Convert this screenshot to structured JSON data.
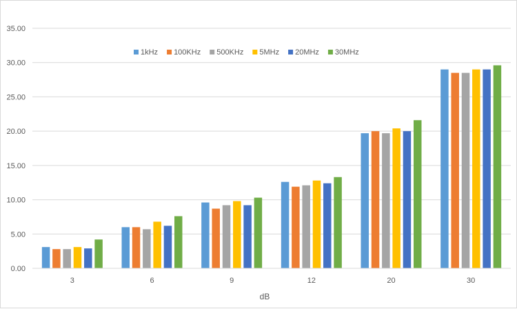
{
  "chart_data": {
    "type": "bar",
    "categories": [
      "3",
      "6",
      "9",
      "12",
      "20",
      "30"
    ],
    "series": [
      {
        "name": "1kHz",
        "color": "#5b9bd5",
        "values": [
          3.1,
          6.0,
          9.6,
          12.6,
          19.7,
          29.0
        ]
      },
      {
        "name": "100KHz",
        "color": "#ed7d31",
        "values": [
          2.8,
          6.0,
          8.7,
          11.9,
          20.0,
          28.5
        ]
      },
      {
        "name": "500KHz",
        "color": "#a5a5a5",
        "values": [
          2.8,
          5.7,
          9.2,
          12.1,
          19.7,
          28.5
        ]
      },
      {
        "name": "5MHz",
        "color": "#ffc000",
        "values": [
          3.1,
          6.8,
          9.8,
          12.8,
          20.4,
          29.0
        ]
      },
      {
        "name": "20MHz",
        "color": "#4472c4",
        "values": [
          2.9,
          6.2,
          9.2,
          12.4,
          20.0,
          29.0
        ]
      },
      {
        "name": "30MHz",
        "color": "#70ad47",
        "values": [
          4.2,
          7.6,
          10.3,
          13.3,
          21.6,
          29.6
        ]
      }
    ],
    "y_ticks": [
      "0.00",
      "5.00",
      "10.00",
      "15.00",
      "20.00",
      "25.00",
      "30.00",
      "35.00"
    ],
    "ylim": [
      0,
      35
    ],
    "xlabel": "dB",
    "ylabel": "",
    "title": "",
    "grid": true,
    "legend_position": "top-center",
    "colors": {
      "gridline": "#d9d9d9",
      "text": "#595959"
    }
  }
}
